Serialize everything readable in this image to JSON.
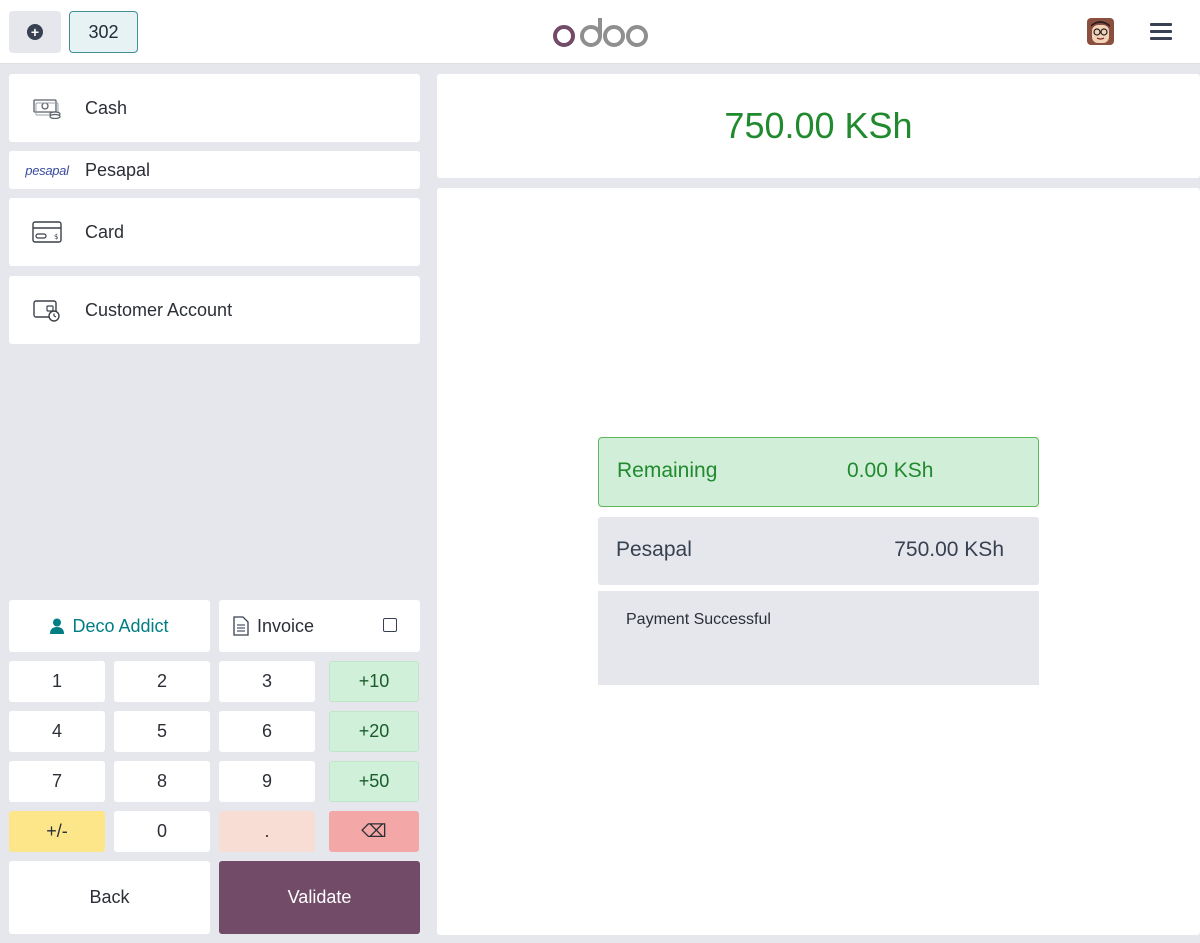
{
  "header": {
    "order_number": "302",
    "logo_text": "odoo"
  },
  "payment_methods": [
    {
      "label": "Cash",
      "icon": "cash-icon"
    },
    {
      "label": "Pesapal",
      "icon": "pesapal-logo",
      "logo_text": "pesapal"
    },
    {
      "label": "Card",
      "icon": "card-icon"
    },
    {
      "label": "Customer Account",
      "icon": "wallet-clock-icon"
    }
  ],
  "customer": {
    "name": "Deco Addict"
  },
  "invoice": {
    "label": "Invoice",
    "checked": false
  },
  "numpad": {
    "rows": [
      [
        "1",
        "2",
        "3",
        "+10"
      ],
      [
        "4",
        "5",
        "6",
        "+20"
      ],
      [
        "7",
        "8",
        "9",
        "+50"
      ],
      [
        "+/-",
        "0",
        ".",
        "⌫"
      ]
    ]
  },
  "actions": {
    "back": "Back",
    "validate": "Validate"
  },
  "summary": {
    "total": "750.00 KSh",
    "remaining_label": "Remaining",
    "remaining_value": "0.00 KSh",
    "payment_line_label": "Pesapal",
    "payment_line_value": "750.00 KSh",
    "payment_status": "Payment Successful"
  },
  "colors": {
    "brand": "#714b67",
    "accent": "#017e84",
    "success": "#218a2e"
  }
}
